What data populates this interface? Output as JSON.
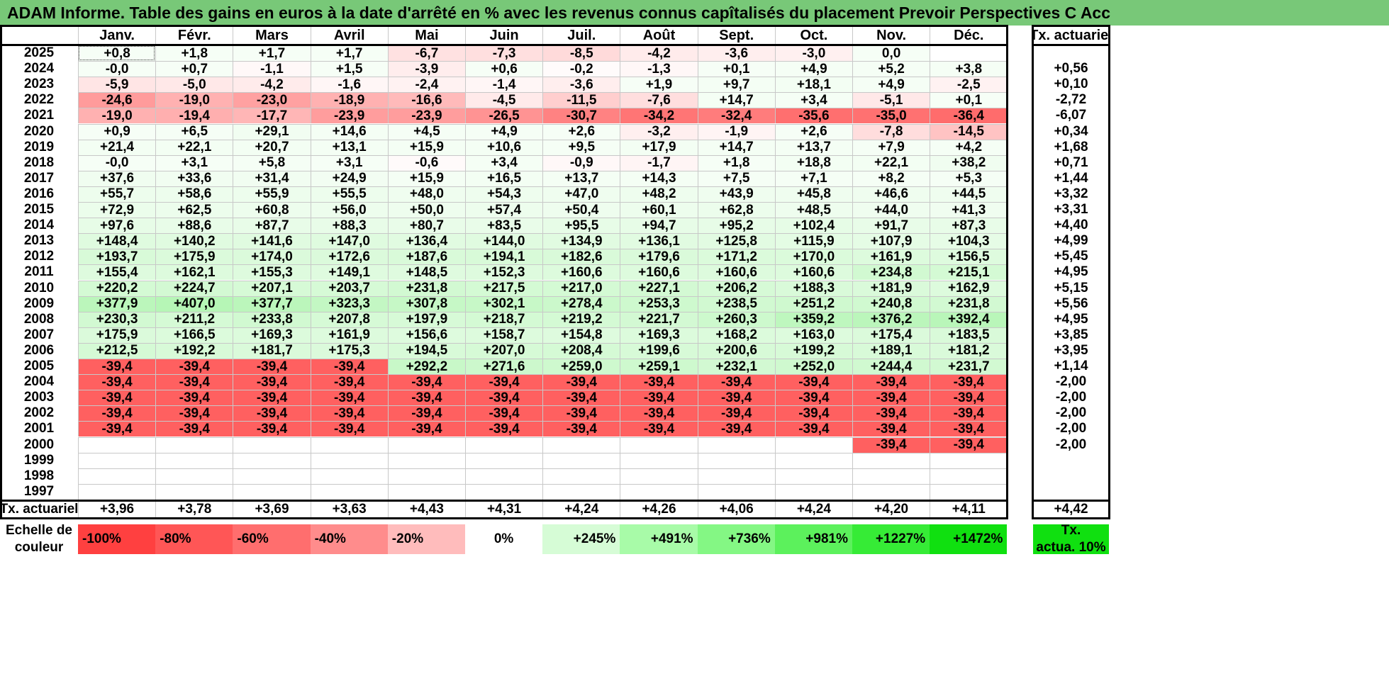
{
  "title": "ADAM Informe. Table des gains en euros à la date d'arrêté en % avec les revenus connus capîtalisés du placement Prevoir Perspectives C Acc",
  "months": [
    "Janv.",
    "Févr.",
    "Mars",
    "Avril",
    "Mai",
    "Juin",
    "Juil.",
    "Août",
    "Sept.",
    "Oct.",
    "Nov.",
    "Déc."
  ],
  "annual_header": "Tx. actuariel",
  "rows": [
    {
      "year": "2025",
      "values": [
        "+0,8",
        "+1,8",
        "+1,7",
        "+1,7",
        "-6,7",
        "-7,3",
        "-8,5",
        "-4,2",
        "-3,6",
        "-3,0",
        "0,0",
        ""
      ],
      "annual": ""
    },
    {
      "year": "2024",
      "values": [
        "-0,0",
        "+0,7",
        "-1,1",
        "+1,5",
        "-3,9",
        "+0,6",
        "-0,2",
        "-1,3",
        "+0,1",
        "+4,9",
        "+5,2",
        "+3,8"
      ],
      "annual": "+0,56"
    },
    {
      "year": "2023",
      "values": [
        "-5,9",
        "-5,0",
        "-4,2",
        "-1,6",
        "-2,4",
        "-1,4",
        "-3,6",
        "+1,9",
        "+9,7",
        "+18,1",
        "+4,9",
        "-2,5"
      ],
      "annual": "+0,10"
    },
    {
      "year": "2022",
      "values": [
        "-24,6",
        "-19,0",
        "-23,0",
        "-18,9",
        "-16,6",
        "-4,5",
        "-11,5",
        "-7,6",
        "+14,7",
        "+3,4",
        "-5,1",
        "+0,1"
      ],
      "annual": "-2,72"
    },
    {
      "year": "2021",
      "values": [
        "-19,0",
        "-19,4",
        "-17,7",
        "-23,9",
        "-23,9",
        "-26,5",
        "-30,7",
        "-34,2",
        "-32,4",
        "-35,6",
        "-35,0",
        "-36,4"
      ],
      "annual": "-6,07"
    },
    {
      "year": "2020",
      "values": [
        "+0,9",
        "+6,5",
        "+29,1",
        "+14,6",
        "+4,5",
        "+4,9",
        "+2,6",
        "-3,2",
        "-1,9",
        "+2,6",
        "-7,8",
        "-14,5"
      ],
      "annual": "+0,34"
    },
    {
      "year": "2019",
      "values": [
        "+21,4",
        "+22,1",
        "+20,7",
        "+13,1",
        "+15,9",
        "+10,6",
        "+9,5",
        "+17,9",
        "+14,7",
        "+13,7",
        "+7,9",
        "+4,2"
      ],
      "annual": "+1,68"
    },
    {
      "year": "2018",
      "values": [
        "-0,0",
        "+3,1",
        "+5,8",
        "+3,1",
        "-0,6",
        "+3,4",
        "-0,9",
        "-1,7",
        "+1,8",
        "+18,8",
        "+22,1",
        "+38,2"
      ],
      "annual": "+0,71"
    },
    {
      "year": "2017",
      "values": [
        "+37,6",
        "+33,6",
        "+31,4",
        "+24,9",
        "+15,9",
        "+16,5",
        "+13,7",
        "+14,3",
        "+7,5",
        "+7,1",
        "+8,2",
        "+5,3"
      ],
      "annual": "+1,44"
    },
    {
      "year": "2016",
      "values": [
        "+55,7",
        "+58,6",
        "+55,9",
        "+55,5",
        "+48,0",
        "+54,3",
        "+47,0",
        "+48,2",
        "+43,9",
        "+45,8",
        "+46,6",
        "+44,5"
      ],
      "annual": "+3,32"
    },
    {
      "year": "2015",
      "values": [
        "+72,9",
        "+62,5",
        "+60,8",
        "+56,0",
        "+50,0",
        "+57,4",
        "+50,4",
        "+60,1",
        "+62,8",
        "+48,5",
        "+44,0",
        "+41,3"
      ],
      "annual": "+3,31"
    },
    {
      "year": "2014",
      "values": [
        "+97,6",
        "+88,6",
        "+87,7",
        "+88,3",
        "+80,7",
        "+83,5",
        "+95,5",
        "+94,7",
        "+95,2",
        "+102,4",
        "+91,7",
        "+87,3"
      ],
      "annual": "+4,40"
    },
    {
      "year": "2013",
      "values": [
        "+148,4",
        "+140,2",
        "+141,6",
        "+147,0",
        "+136,4",
        "+144,0",
        "+134,9",
        "+136,1",
        "+125,8",
        "+115,9",
        "+107,9",
        "+104,3"
      ],
      "annual": "+4,99"
    },
    {
      "year": "2012",
      "values": [
        "+193,7",
        "+175,9",
        "+174,0",
        "+172,6",
        "+187,6",
        "+194,1",
        "+182,6",
        "+179,6",
        "+171,2",
        "+170,0",
        "+161,9",
        "+156,5"
      ],
      "annual": "+5,45"
    },
    {
      "year": "2011",
      "values": [
        "+155,4",
        "+162,1",
        "+155,3",
        "+149,1",
        "+148,5",
        "+152,3",
        "+160,6",
        "+160,6",
        "+160,6",
        "+160,6",
        "+234,8",
        "+215,1"
      ],
      "annual": "+4,95"
    },
    {
      "year": "2010",
      "values": [
        "+220,2",
        "+224,7",
        "+207,1",
        "+203,7",
        "+231,8",
        "+217,5",
        "+217,0",
        "+227,1",
        "+206,2",
        "+188,3",
        "+181,9",
        "+162,9"
      ],
      "annual": "+5,15"
    },
    {
      "year": "2009",
      "values": [
        "+377,9",
        "+407,0",
        "+377,7",
        "+323,3",
        "+307,8",
        "+302,1",
        "+278,4",
        "+253,3",
        "+238,5",
        "+251,2",
        "+240,8",
        "+231,8"
      ],
      "annual": "+5,56"
    },
    {
      "year": "2008",
      "values": [
        "+230,3",
        "+211,2",
        "+233,8",
        "+207,8",
        "+197,9",
        "+218,7",
        "+219,2",
        "+221,7",
        "+260,3",
        "+359,2",
        "+376,2",
        "+392,4"
      ],
      "annual": "+4,95"
    },
    {
      "year": "2007",
      "values": [
        "+175,9",
        "+166,5",
        "+169,3",
        "+161,9",
        "+156,6",
        "+158,7",
        "+154,8",
        "+169,3",
        "+168,2",
        "+163,0",
        "+175,4",
        "+183,5"
      ],
      "annual": "+3,85"
    },
    {
      "year": "2006",
      "values": [
        "+212,5",
        "+192,2",
        "+181,7",
        "+175,3",
        "+194,5",
        "+207,0",
        "+208,4",
        "+199,6",
        "+200,6",
        "+199,2",
        "+189,1",
        "+181,2"
      ],
      "annual": "+3,95"
    },
    {
      "year": "2005",
      "values": [
        "-39,4",
        "-39,4",
        "-39,4",
        "-39,4",
        "+292,2",
        "+271,6",
        "+259,0",
        "+259,1",
        "+232,1",
        "+252,0",
        "+244,4",
        "+231,7"
      ],
      "annual": "+1,14"
    },
    {
      "year": "2004",
      "values": [
        "-39,4",
        "-39,4",
        "-39,4",
        "-39,4",
        "-39,4",
        "-39,4",
        "-39,4",
        "-39,4",
        "-39,4",
        "-39,4",
        "-39,4",
        "-39,4"
      ],
      "annual": "-2,00"
    },
    {
      "year": "2003",
      "values": [
        "-39,4",
        "-39,4",
        "-39,4",
        "-39,4",
        "-39,4",
        "-39,4",
        "-39,4",
        "-39,4",
        "-39,4",
        "-39,4",
        "-39,4",
        "-39,4"
      ],
      "annual": "-2,00"
    },
    {
      "year": "2002",
      "values": [
        "-39,4",
        "-39,4",
        "-39,4",
        "-39,4",
        "-39,4",
        "-39,4",
        "-39,4",
        "-39,4",
        "-39,4",
        "-39,4",
        "-39,4",
        "-39,4"
      ],
      "annual": "-2,00"
    },
    {
      "year": "2001",
      "values": [
        "-39,4",
        "-39,4",
        "-39,4",
        "-39,4",
        "-39,4",
        "-39,4",
        "-39,4",
        "-39,4",
        "-39,4",
        "-39,4",
        "-39,4",
        "-39,4"
      ],
      "annual": "-2,00"
    },
    {
      "year": "2000",
      "values": [
        "",
        "",
        "",
        "",
        "",
        "",
        "",
        "",
        "",
        "",
        "-39,4",
        "-39,4"
      ],
      "annual": "-2,00"
    },
    {
      "year": "1999",
      "values": [
        "",
        "",
        "",
        "",
        "",
        "",
        "",
        "",
        "",
        "",
        "",
        ""
      ],
      "annual": ""
    },
    {
      "year": "1998",
      "values": [
        "",
        "",
        "",
        "",
        "",
        "",
        "",
        "",
        "",
        "",
        "",
        ""
      ],
      "annual": ""
    },
    {
      "year": "1997",
      "values": [
        "",
        "",
        "",
        "",
        "",
        "",
        "",
        "",
        "",
        "",
        "",
        ""
      ],
      "annual": ""
    }
  ],
  "footer": {
    "label": "Tx. actuariel",
    "values": [
      "+3,96",
      "+3,78",
      "+3,69",
      "+3,63",
      "+4,43",
      "+4,31",
      "+4,24",
      "+4,26",
      "+4,06",
      "+4,24",
      "+4,20",
      "+4,11"
    ],
    "annual": "+4,42"
  },
  "scale": {
    "label_line1": "Echelle de",
    "label_line2": "couleur",
    "items": [
      {
        "text": "-100%",
        "color": "#ff4040"
      },
      {
        "text": "-80%",
        "color": "#ff5656"
      },
      {
        "text": "-60%",
        "color": "#ff6e6e"
      },
      {
        "text": "-40%",
        "color": "#ff8c8c"
      },
      {
        "text": "-20%",
        "color": "#ffbcbc"
      },
      {
        "text": "0%",
        "color": "#ffffff"
      },
      {
        "text": "+245%",
        "color": "#d6fcd6"
      },
      {
        "text": "+491%",
        "color": "#a8fba8"
      },
      {
        "text": "+736%",
        "color": "#84f784"
      },
      {
        "text": "+981%",
        "color": "#5cf15c"
      },
      {
        "text": "+1227%",
        "color": "#36eb36"
      },
      {
        "text": "+1472%",
        "color": "#10e010"
      }
    ],
    "annual_line1": "Tx.",
    "annual_line2": "actua. 10%",
    "annual_color": "#10e010"
  },
  "colors": {
    "title_bar": "#78c878",
    "negative_max": "#ff6060",
    "positive_full": "#10e010"
  }
}
